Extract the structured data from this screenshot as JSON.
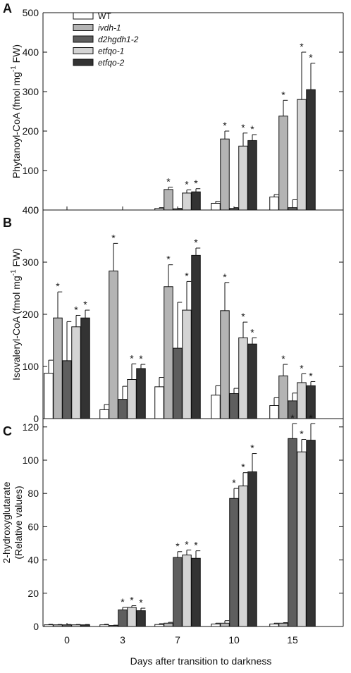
{
  "colors": {
    "WT": "#ffffff",
    "ivdh-1": "#b4b4b4",
    "d2hgdh1-2": "#5e5e5e",
    "etfqo-1": "#d4d4d4",
    "etfqo-2": "#333333"
  },
  "chart_data": [
    {
      "type": "bar",
      "panel": "A",
      "ylabel_parts": [
        "Phytanoyl-CoA (fmol mg",
        "-1",
        " FW)"
      ],
      "xlabel": "",
      "categories": [
        "0",
        "3",
        "7",
        "10",
        "15"
      ],
      "ylim": [
        0,
        500
      ],
      "yticks": [
        0,
        100,
        200,
        300,
        400,
        500
      ],
      "legend": {
        "placement": "top-left",
        "entries": [
          {
            "name": "WT",
            "italic": false
          },
          {
            "name": "ivdh-1",
            "italic": true
          },
          {
            "name": "d2hgdh1-2",
            "italic": true
          },
          {
            "name": "etfqo-1",
            "italic": true
          },
          {
            "name": "etfqo-2",
            "italic": true
          }
        ]
      },
      "series": [
        {
          "name": "WT",
          "values": [
            0,
            0,
            4,
            17,
            33
          ],
          "errors": [
            0,
            0,
            2,
            5,
            6
          ],
          "significant": [
            false,
            false,
            false,
            false,
            false
          ]
        },
        {
          "name": "ivdh-1",
          "values": [
            0,
            0,
            52,
            180,
            238
          ],
          "errors": [
            0,
            0,
            6,
            20,
            40
          ],
          "significant": [
            false,
            false,
            true,
            true,
            true
          ]
        },
        {
          "name": "d2hgdh1-2",
          "values": [
            0,
            0,
            3,
            4,
            6
          ],
          "errors": [
            0,
            0,
            1,
            2,
            20
          ],
          "significant": [
            false,
            false,
            false,
            false,
            false
          ]
        },
        {
          "name": "etfqo-1",
          "values": [
            0,
            0,
            43,
            162,
            280
          ],
          "errors": [
            0,
            0,
            8,
            33,
            120
          ],
          "significant": [
            false,
            false,
            true,
            true,
            true
          ]
        },
        {
          "name": "etfqo-2",
          "values": [
            0,
            0,
            46,
            176,
            305
          ],
          "errors": [
            0,
            0,
            8,
            15,
            67
          ],
          "significant": [
            false,
            false,
            true,
            true,
            true
          ]
        }
      ]
    },
    {
      "type": "bar",
      "panel": "B",
      "ylabel_parts": [
        "Isovaleryl-CoA (fmol mg",
        "-1",
        " FW)"
      ],
      "xlabel": "",
      "categories": [
        "0",
        "3",
        "7",
        "10",
        "15"
      ],
      "ylim": [
        0,
        400
      ],
      "yticks": [
        0,
        100,
        200,
        300,
        400
      ],
      "series": [
        {
          "name": "WT",
          "values": [
            87,
            17,
            61,
            45,
            25
          ],
          "errors": [
            25,
            10,
            18,
            18,
            15
          ],
          "significant": [
            false,
            false,
            false,
            false,
            false
          ]
        },
        {
          "name": "ivdh-1",
          "values": [
            193,
            283,
            253,
            207,
            82
          ],
          "errors": [
            50,
            53,
            42,
            54,
            22
          ],
          "significant": [
            true,
            true,
            true,
            true,
            true
          ]
        },
        {
          "name": "d2hgdh1-2",
          "values": [
            111,
            37,
            135,
            48,
            34
          ],
          "errors": [
            75,
            25,
            88,
            10,
            15
          ],
          "significant": [
            false,
            false,
            false,
            false,
            false
          ]
        },
        {
          "name": "etfqo-1",
          "values": [
            176,
            75,
            208,
            155,
            69
          ],
          "errors": [
            22,
            30,
            55,
            30,
            17
          ],
          "significant": [
            true,
            true,
            true,
            true,
            true
          ]
        },
        {
          "name": "etfqo-2",
          "values": [
            193,
            96,
            313,
            143,
            63
          ],
          "errors": [
            15,
            8,
            14,
            12,
            8
          ],
          "significant": [
            true,
            true,
            true,
            true,
            true
          ]
        }
      ]
    },
    {
      "type": "bar",
      "panel": "C",
      "ylabel_parts": [
        "2-hydroxyglutarate",
        "(Relative values)"
      ],
      "xlabel": "Days after transition to darkness",
      "categories": [
        "0",
        "3",
        "7",
        "10",
        "15"
      ],
      "ylim": [
        0,
        125
      ],
      "yticks": [
        0,
        20,
        40,
        60,
        80,
        100,
        120
      ],
      "series": [
        {
          "name": "WT",
          "values": [
            1,
            1,
            1.2,
            1.5,
            1.5
          ],
          "errors": [
            0.3,
            0.3,
            0.5,
            0.5,
            0.5
          ],
          "significant": [
            false,
            false,
            false,
            false,
            false
          ]
        },
        {
          "name": "ivdh-1",
          "values": [
            1,
            0.6,
            2,
            2,
            2
          ],
          "errors": [
            0.2,
            0.2,
            0.5,
            1.5,
            0.3
          ],
          "significant": [
            false,
            false,
            false,
            false,
            false
          ]
        },
        {
          "name": "d2hgdh1-2",
          "values": [
            1,
            10,
            41.5,
            77,
            113
          ],
          "errors": [
            0.2,
            1.5,
            3.5,
            6,
            9
          ],
          "significant": [
            false,
            true,
            true,
            true,
            true
          ]
        },
        {
          "name": "etfqo-1",
          "values": [
            1,
            11.5,
            43,
            84.5,
            105
          ],
          "errors": [
            0.2,
            1,
            3,
            8,
            7.5
          ],
          "significant": [
            false,
            true,
            true,
            true,
            true
          ]
        },
        {
          "name": "etfqo-2",
          "values": [
            1,
            9.5,
            41,
            93,
            112
          ],
          "errors": [
            0.2,
            1.5,
            4.5,
            11,
            10
          ],
          "significant": [
            false,
            true,
            true,
            true,
            true
          ]
        }
      ]
    }
  ],
  "significance_marker": "*"
}
